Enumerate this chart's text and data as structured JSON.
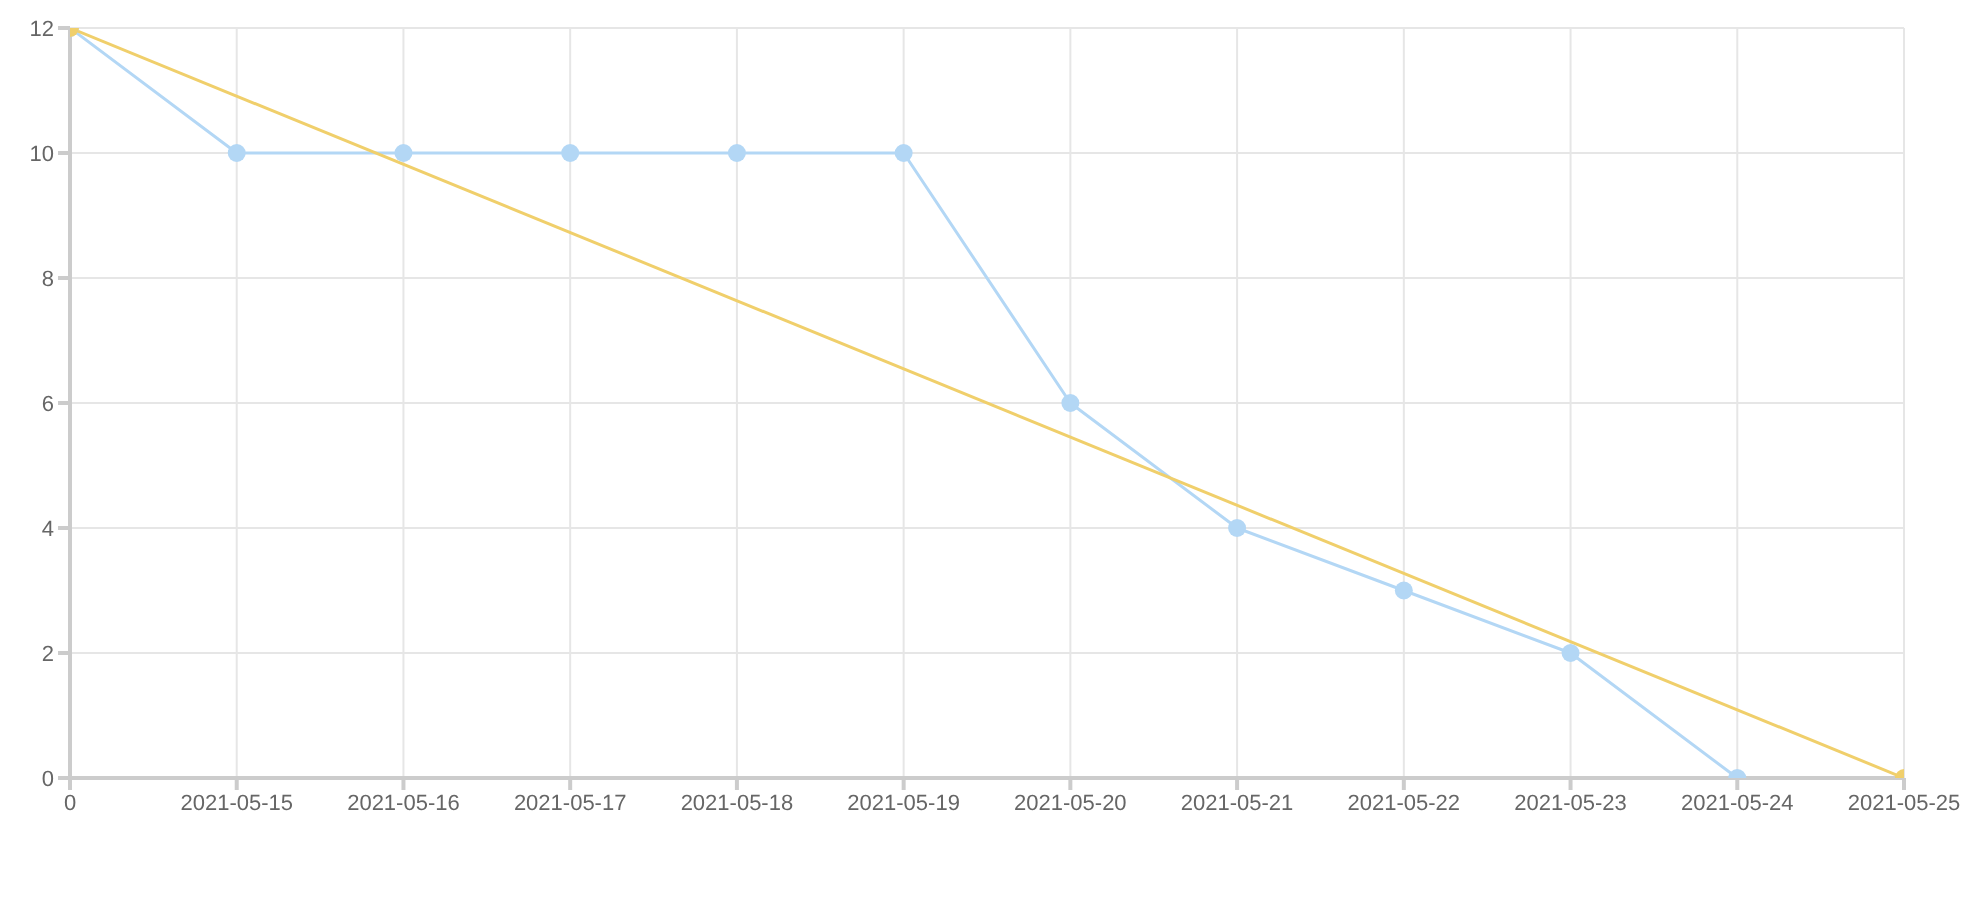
{
  "chart_data": {
    "type": "line",
    "categories": [
      "0",
      "2021-05-15",
      "2021-05-16",
      "2021-05-17",
      "2021-05-18",
      "2021-05-19",
      "2021-05-20",
      "2021-05-21",
      "2021-05-22",
      "2021-05-23",
      "2021-05-24",
      "2021-05-25"
    ],
    "series": [
      {
        "color": "#b3d7f5",
        "values": [
          12,
          10,
          10,
          10,
          10,
          10,
          6,
          4,
          3,
          2,
          0,
          null
        ]
      },
      {
        "color": "#f0cf6b",
        "values": [
          12,
          null,
          null,
          null,
          null,
          null,
          null,
          null,
          null,
          null,
          null,
          0
        ]
      }
    ],
    "ylim": [
      0,
      12
    ],
    "yticks": [
      0,
      2,
      4,
      6,
      8,
      10,
      12
    ],
    "grid": true,
    "legend": false,
    "marker": "circle",
    "line_style": "solid"
  }
}
